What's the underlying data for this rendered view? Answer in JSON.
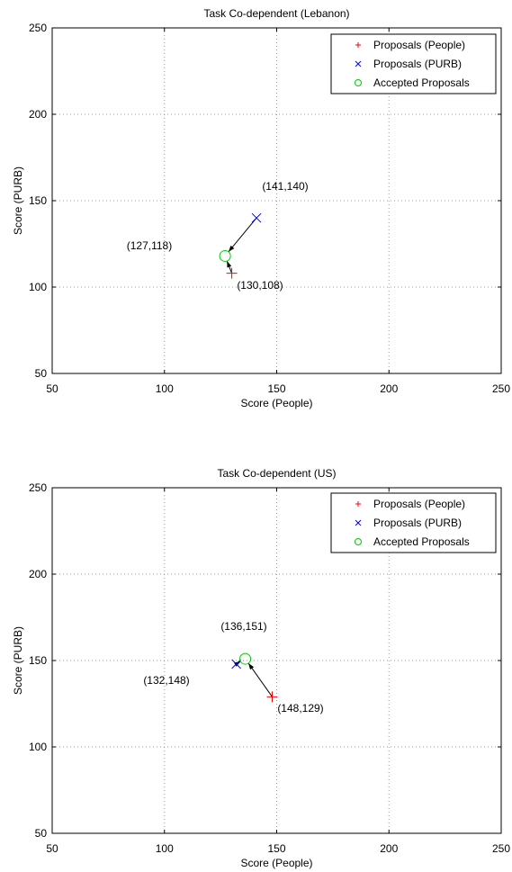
{
  "legend_labels": [
    "Proposals (People)",
    "Proposals (PURB)",
    "Accepted Proposals"
  ],
  "colors": {
    "people": "#ff0000",
    "purb": "#0000ff",
    "accepted": "#00cc00",
    "grid": "#999999",
    "arrow": "#000000"
  },
  "chart_data": [
    {
      "type": "scatter",
      "title": "Task Co-dependent (Lebanon)",
      "xlabel": "Score (People)",
      "ylabel": "Score (PURB)",
      "xlim": [
        50,
        250
      ],
      "ylim": [
        50,
        250
      ],
      "xticks": [
        50,
        100,
        150,
        200,
        250
      ],
      "yticks": [
        50,
        100,
        150,
        200,
        250
      ],
      "grid": true,
      "legend_position": "top-right",
      "series": [
        {
          "name": "Proposals (People)",
          "marker": "plus",
          "points": [
            [
              130,
              108
            ]
          ]
        },
        {
          "name": "Proposals (PURB)",
          "marker": "x",
          "points": [
            [
              141,
              140
            ]
          ]
        },
        {
          "name": "Accepted Proposals",
          "marker": "circle",
          "points": [
            [
              127,
              118
            ]
          ]
        }
      ],
      "arrows": [
        {
          "from": [
            141,
            140
          ],
          "to": [
            127,
            118
          ]
        },
        {
          "from": [
            130,
            108
          ],
          "to": [
            127,
            118
          ]
        }
      ],
      "annotations": [
        {
          "text": "(141,140)"
        },
        {
          "text": "(127,118)"
        },
        {
          "text": "(130,108)"
        }
      ]
    },
    {
      "type": "scatter",
      "title": "Task Co-dependent (US)",
      "xlabel": "Score (People)",
      "ylabel": "Score (PURB)",
      "xlim": [
        50,
        250
      ],
      "ylim": [
        50,
        250
      ],
      "xticks": [
        50,
        100,
        150,
        200,
        250
      ],
      "yticks": [
        50,
        100,
        150,
        200,
        250
      ],
      "grid": true,
      "legend_position": "top-right",
      "series": [
        {
          "name": "Proposals (People)",
          "marker": "plus",
          "points": [
            [
              148,
              129
            ]
          ]
        },
        {
          "name": "Proposals (PURB)",
          "marker": "x",
          "points": [
            [
              132,
              148
            ]
          ]
        },
        {
          "name": "Accepted Proposals",
          "marker": "circle",
          "points": [
            [
              136,
              151
            ]
          ]
        }
      ],
      "arrows": [
        {
          "from": [
            148,
            129
          ],
          "to": [
            136,
            151
          ]
        },
        {
          "from": [
            132,
            148
          ],
          "to": [
            136,
            151
          ]
        }
      ],
      "annotations": [
        {
          "text": "(136,151)"
        },
        {
          "text": "(132,148)"
        },
        {
          "text": "(148,129)"
        }
      ]
    }
  ]
}
